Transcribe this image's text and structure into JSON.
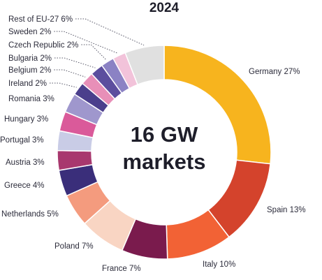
{
  "chart_data": {
    "type": "pie",
    "title": "2024",
    "center_text": [
      "16 GW",
      "markets"
    ],
    "slices": [
      {
        "label": "Germany 27%",
        "value": 27,
        "color": "#F7B41E"
      },
      {
        "label": "Spain 13%",
        "value": 13,
        "color": "#D4432C"
      },
      {
        "label": "Italy 10%",
        "value": 10,
        "color": "#F26235"
      },
      {
        "label": "France 7%",
        "value": 7,
        "color": "#7A1B4D"
      },
      {
        "label": "Poland 7%",
        "value": 7,
        "color": "#F9D5C3"
      },
      {
        "label": "Netherlands 5%",
        "value": 5,
        "color": "#F49B7E"
      },
      {
        "label": "Greece 4%",
        "value": 4,
        "color": "#3A2E7A"
      },
      {
        "label": "Austria 3%",
        "value": 3,
        "color": "#A8386E"
      },
      {
        "label": "Portugal 3%",
        "value": 3,
        "color": "#C9CCE6"
      },
      {
        "label": "Hungary 3%",
        "value": 3,
        "color": "#DA5A9A"
      },
      {
        "label": "Romania 3%",
        "value": 3,
        "color": "#9F97CD"
      },
      {
        "label": "Ireland 2%",
        "value": 2,
        "color": "#4B3F8C"
      },
      {
        "label": "Belgium 2%",
        "value": 2,
        "color": "#E88FB8"
      },
      {
        "label": "Bulgaria 2%",
        "value": 2,
        "color": "#5C4E9E"
      },
      {
        "label": "Czech Republic 2%",
        "value": 2,
        "color": "#8B82C4"
      },
      {
        "label": "Sweden 2%",
        "value": 2,
        "color": "#F2C3DA"
      },
      {
        "label": "Rest of EU-27 6%",
        "value": 6,
        "color": "#E0E0E0"
      }
    ]
  }
}
